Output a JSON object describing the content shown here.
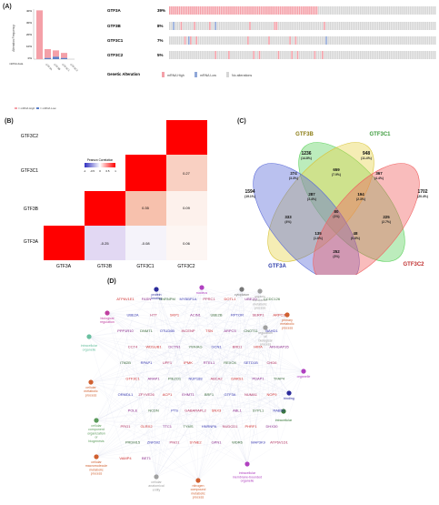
{
  "panels": {
    "a": "(A)",
    "b": "(B)",
    "c": "(C)",
    "d": "(D)"
  },
  "panelA": {
    "ylabel": "Alteration Frequency",
    "yticks": [
      "40%",
      "30%",
      "20%",
      "10%",
      "0%"
    ],
    "xlabel_short": "mRNA data",
    "bar_legend": [
      "= mRNA High",
      "= mRNA Low"
    ],
    "genes": [
      {
        "name": "GTF3A",
        "pct": "39%",
        "high": 0.39,
        "low": 0.0
      },
      {
        "name": "GTF3B",
        "pct": "8%",
        "high": 0.07,
        "low": 0.01
      },
      {
        "name": "GTF3C1",
        "pct": "7%",
        "high": 0.05,
        "low": 0.02
      },
      {
        "name": "GTF3C2",
        "pct": "5%",
        "high": 0.04,
        "low": 0.01
      }
    ],
    "legend_title": "Genetic Alteration",
    "legend": [
      {
        "label": "mRNA High",
        "color": "#f4a0a8"
      },
      {
        "label": "mRNA Low",
        "color": "#8fa7d8"
      },
      {
        "label": "No alterations",
        "color": "#d6d6d6"
      }
    ]
  },
  "panelB": {
    "row_labels": [
      "GTF3C2",
      "GTF3C1",
      "GTF3B",
      "GTF3A"
    ],
    "col_labels": [
      "GTF3A",
      "GTF3B",
      "GTF3C1",
      "GTF3C2"
    ],
    "legend_title": "Pearson Correlation",
    "legend_ticks": [
      "-1",
      "-0.5",
      "0",
      "0.5",
      "1"
    ],
    "values": {
      "c1_b": "0.27",
      "c2_b": "0.09",
      "c2_a": "0.06",
      "b_a": "-0.25",
      "c1_a": "-0.08",
      "b_c1": "0.35"
    }
  },
  "panelC": {
    "sets": [
      {
        "name": "GTF3B",
        "color": "#e8d44d"
      },
      {
        "name": "GTF3C1",
        "color": "#5fd25f"
      },
      {
        "name": "GTF3A",
        "color": "#5b6bd8"
      },
      {
        "name": "GTF3C2",
        "color": "#f06060"
      }
    ],
    "regions": [
      {
        "n": "1236",
        "p": "(14.8%)"
      },
      {
        "n": "948",
        "p": "(11.4%)"
      },
      {
        "n": "1594",
        "p": "(19.1%)"
      },
      {
        "n": "1702",
        "p": "(20.4%)"
      },
      {
        "n": "274",
        "p": "(3.3%)"
      },
      {
        "n": "659",
        "p": "(7.9%)"
      },
      {
        "n": "367",
        "p": "(4.4%)"
      },
      {
        "n": "287",
        "p": "(3.4%)"
      },
      {
        "n": "194",
        "p": "(2.3%)"
      },
      {
        "n": "333",
        "p": "(4%)"
      },
      {
        "n": "80",
        "p": "(1%)"
      },
      {
        "n": "225",
        "p": "(2.7%)"
      },
      {
        "n": "135",
        "p": "(1.6%)"
      },
      {
        "n": "48",
        "p": "(0.6%)"
      },
      {
        "n": "252",
        "p": "(3%)"
      }
    ]
  },
  "panelD": {
    "go_terms": [
      "protein binding",
      "nucleus",
      "organic substance metabolic process",
      "biological regulation",
      "regulation of biological process",
      "primary metabolic process",
      "cytoplasm",
      "intracellular organelle",
      "cellular metabolic process",
      "organelle",
      "binding",
      "cellular component organization or biogenesis",
      "cellular macromolecule metabolic process",
      "intracellular",
      "cellular anatomical entity",
      "nitrogen compound metabolic process",
      "intracellular membrane-bounded organelle"
    ],
    "genes": [
      "ATP6V1E1",
      "FASN",
      "HNRNPM",
      "MYBBP1A",
      "PPRC1",
      "DOTL1",
      "UBE2O",
      "CCDC126",
      "UBE2A",
      "HTT",
      "SKP1",
      "ACIN1",
      "UBE2B",
      "RPTOR",
      "SERP1",
      "ARPC3",
      "PPP1R10",
      "DNMT1",
      "OTUD6B",
      "INCENP",
      "TSN",
      "ARPC5",
      "CNOT11",
      "BAHD1",
      "CCT4",
      "WDSUB1",
      "DCTN1",
      "YWHAG",
      "GCN1",
      "BRD1",
      "HIRA",
      "ARHGAP35",
      "ITM2B",
      "RPAP1",
      "UPF1",
      "IPMK",
      "RTEL1",
      "REXO4",
      "SETD1B",
      "CHD6",
      "GTF3C1",
      "ARAP1",
      "PIEZO1",
      "NUP188",
      "ABCA2",
      "DARS1",
      "PDAP1",
      "TFAP4",
      "ORMDL1",
      "ZFYVE26",
      "ACP1",
      "EHMT1",
      "BRF1",
      "GTF3A",
      "NUMA1",
      "NOP9",
      "POLE",
      "NCDN",
      "PTS",
      "GABARAPL2",
      "SNX3",
      "ABL1",
      "SYPL1",
      "RAB5C",
      "PRG1",
      "GLRX2",
      "TTC1",
      "TYMS",
      "HNRNPA",
      "NUDCD1",
      "PHRF1",
      "DHX30",
      "PRDM15",
      "ZNF592",
      "PNO1",
      "SYNE2",
      "GPN1",
      "WDR6",
      "MAP3K9",
      "ATP6V1D1",
      "VAMP4",
      "BET1"
    ]
  }
}
